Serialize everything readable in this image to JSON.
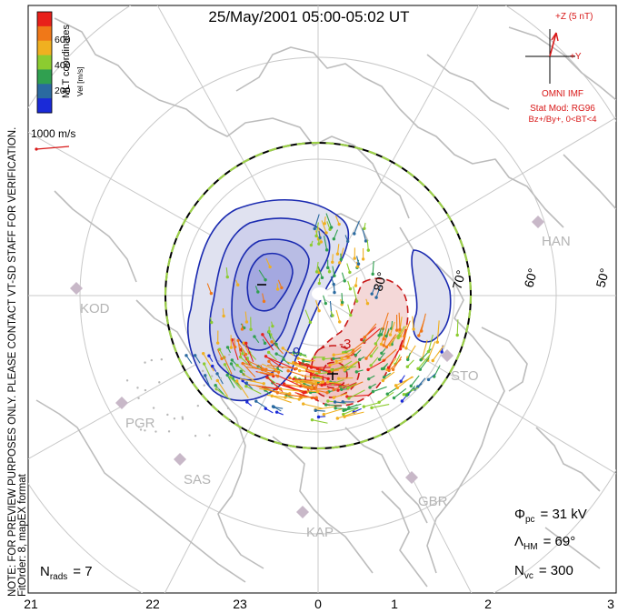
{
  "title": "25/May/2001 05:00-05:02 UT",
  "side_note_line1": "NOTE: FOR PREVIEW PURPOSES ONLY. PLEASE CONTACT VT-SD STAFF FOR VERIFICATION.",
  "side_note_line2": "FitOrder: 8, mapEX format",
  "coords_label": "MLT coordinates",
  "colorbar": {
    "label": "Vel [m/s]",
    "ticks": [
      "600",
      "400",
      "200"
    ],
    "colors": [
      "#e8201a",
      "#f07818",
      "#f0b020",
      "#8ccc30",
      "#30a050",
      "#2a6aa0",
      "#1a2ad8"
    ]
  },
  "scale_vector_label": "1000 m/s",
  "imf": {
    "z_label": "+Z (5 nT)",
    "y_label": "+Y",
    "source": "OMNI IMF",
    "stat_mod": "Stat Mod: RG96",
    "condition": "Bz+/By+, 0<BT<4"
  },
  "stats": {
    "phi_pc_symbol": "Φ",
    "phi_pc_sub": "pc",
    "phi_pc_value": "= 31 kV",
    "lambda_hm_symbol": "Λ",
    "lambda_hm_sub": "HM",
    "lambda_hm_value": "= 69°",
    "n_vc_symbol": "N",
    "n_vc_sub": "vc",
    "n_vc_value": "= 300",
    "n_rads_symbol": "N",
    "n_rads_sub": "rads",
    "n_rads_value": "= 7"
  },
  "latitude_labels": [
    "80°",
    "70°",
    "60°",
    "50°"
  ],
  "mlt_labels": [
    "21",
    "22",
    "23",
    "0",
    "1",
    "2",
    "3"
  ],
  "radar_sites": [
    "HAN",
    "KOD",
    "STO",
    "PGR",
    "SAS",
    "GBR",
    "KAP"
  ],
  "contour_labels": [
    "-9",
    "-3"
  ],
  "colors": {
    "negative_cell": "#1a2ab0",
    "negative_fill": "#c8cce8",
    "positive_cell": "#c81818",
    "positive_fill": "#f4cccc",
    "coastline": "#bcbcbc",
    "hmb_dash": "#9cd048",
    "imf_vector": "#d81818"
  }
}
